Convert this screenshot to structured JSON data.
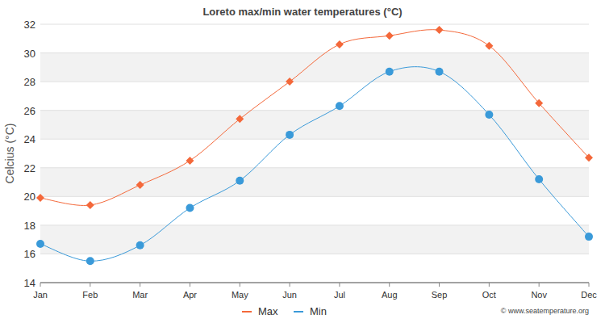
{
  "chart_data": {
    "type": "line",
    "title": "Loreto max/min water temperatures (°C)",
    "y_label": "Celcius (°C)",
    "categories": [
      "Jan",
      "Feb",
      "Mar",
      "Apr",
      "May",
      "Jun",
      "Jul",
      "Aug",
      "Sep",
      "Oct",
      "Nov",
      "Dec"
    ],
    "series": [
      {
        "name": "Max",
        "color": "#f4683a",
        "marker": "diamond",
        "line_style": "smooth",
        "values": [
          19.9,
          19.4,
          20.8,
          22.5,
          25.4,
          28.0,
          30.6,
          31.2,
          31.6,
          30.5,
          26.5,
          22.7
        ]
      },
      {
        "name": "Min",
        "color": "#3a9ad9",
        "marker": "circle",
        "line_style": "smooth",
        "values": [
          16.7,
          15.5,
          16.6,
          19.2,
          21.1,
          24.3,
          26.3,
          28.7,
          28.7,
          25.7,
          21.2,
          17.2
        ]
      }
    ],
    "ylim": [
      14,
      32
    ],
    "yticks": [
      14,
      16,
      18,
      20,
      22,
      24,
      26,
      28,
      30,
      32
    ],
    "grid": true,
    "legend": "bottom",
    "annotations": [
      "© www.seatemperature.org"
    ]
  }
}
